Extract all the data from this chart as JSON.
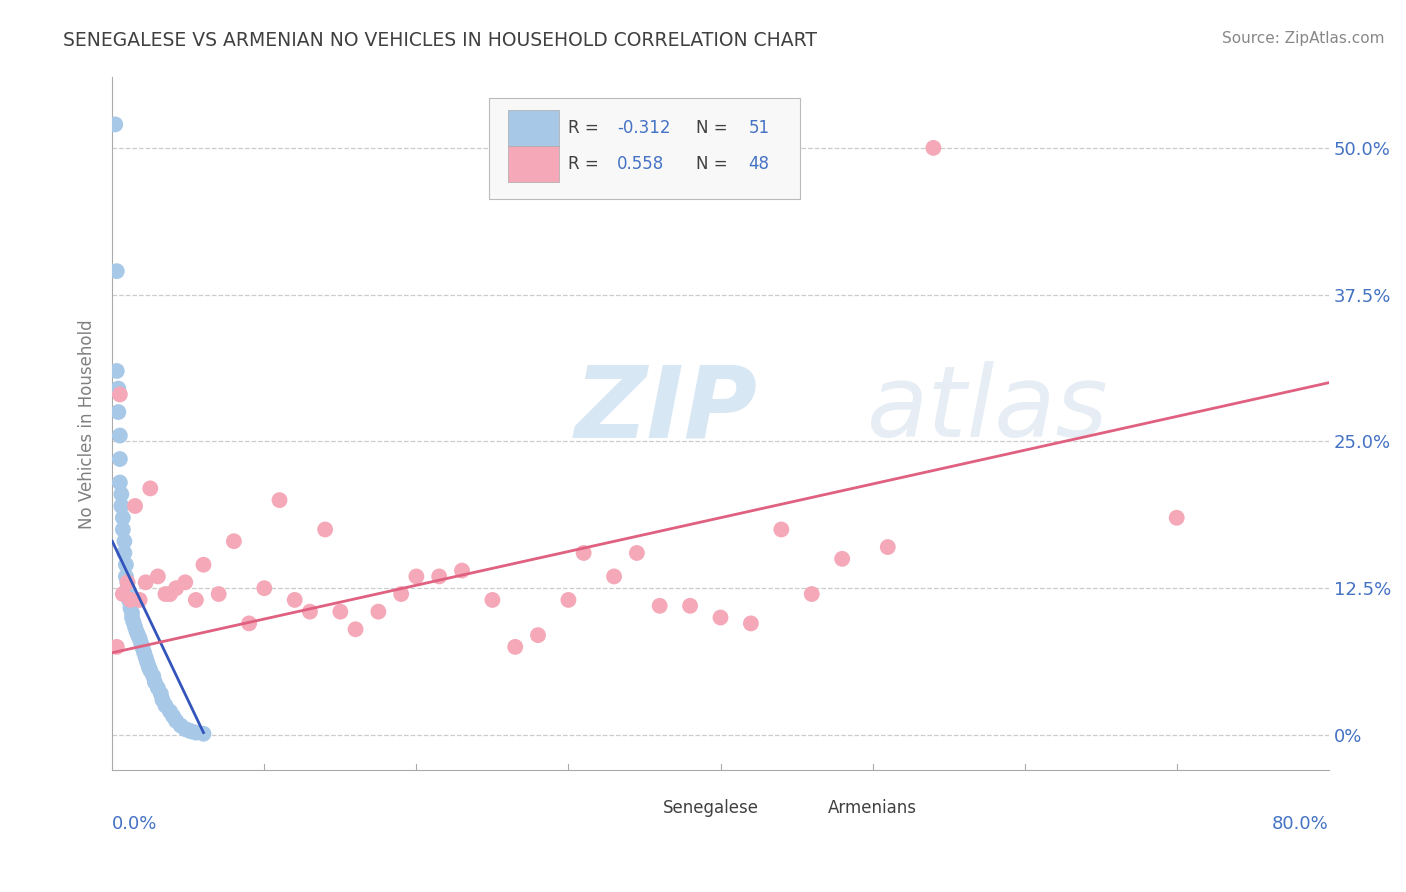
{
  "title": "SENEGALESE VS ARMENIAN NO VEHICLES IN HOUSEHOLD CORRELATION CHART",
  "source": "Source: ZipAtlas.com",
  "ylabel": "No Vehicles in Household",
  "ytick_vals": [
    0.0,
    0.125,
    0.25,
    0.375,
    0.5
  ],
  "ytick_labels": [
    "0%",
    "12.5%",
    "25.0%",
    "37.5%",
    "50.0%"
  ],
  "xmin": 0.0,
  "xmax": 0.8,
  "ymin": -0.03,
  "ymax": 0.56,
  "senegalese_R": -0.312,
  "senegalese_N": 51,
  "armenian_R": 0.558,
  "armenian_N": 48,
  "senegalese_color": "#a8c8e8",
  "armenian_color": "#f4a8b8",
  "senegalese_line_color": "#3355bb",
  "armenian_line_color": "#e06080",
  "background_color": "#ffffff",
  "title_color": "#404040",
  "watermark_color": "#cce0f0",
  "senegalese_x": [
    0.002,
    0.003,
    0.003,
    0.004,
    0.004,
    0.005,
    0.005,
    0.005,
    0.006,
    0.006,
    0.007,
    0.007,
    0.008,
    0.008,
    0.009,
    0.009,
    0.01,
    0.01,
    0.011,
    0.011,
    0.012,
    0.012,
    0.013,
    0.013,
    0.014,
    0.015,
    0.016,
    0.017,
    0.018,
    0.019,
    0.02,
    0.021,
    0.022,
    0.023,
    0.024,
    0.025,
    0.027,
    0.028,
    0.03,
    0.032,
    0.033,
    0.035,
    0.038,
    0.04,
    0.042,
    0.045,
    0.048,
    0.05,
    0.052,
    0.055,
    0.06
  ],
  "senegalese_y": [
    0.52,
    0.395,
    0.31,
    0.295,
    0.275,
    0.255,
    0.235,
    0.215,
    0.205,
    0.195,
    0.185,
    0.175,
    0.165,
    0.155,
    0.145,
    0.135,
    0.13,
    0.125,
    0.12,
    0.115,
    0.112,
    0.108,
    0.104,
    0.1,
    0.096,
    0.092,
    0.088,
    0.085,
    0.082,
    0.078,
    0.074,
    0.07,
    0.066,
    0.062,
    0.058,
    0.055,
    0.05,
    0.045,
    0.04,
    0.035,
    0.03,
    0.025,
    0.02,
    0.016,
    0.012,
    0.008,
    0.005,
    0.004,
    0.003,
    0.002,
    0.001
  ],
  "armenian_x": [
    0.003,
    0.005,
    0.007,
    0.01,
    0.012,
    0.015,
    0.018,
    0.022,
    0.025,
    0.03,
    0.035,
    0.038,
    0.042,
    0.048,
    0.055,
    0.06,
    0.07,
    0.08,
    0.09,
    0.1,
    0.11,
    0.12,
    0.13,
    0.14,
    0.15,
    0.16,
    0.175,
    0.19,
    0.2,
    0.215,
    0.23,
    0.25,
    0.265,
    0.28,
    0.3,
    0.31,
    0.33,
    0.345,
    0.36,
    0.38,
    0.4,
    0.42,
    0.44,
    0.46,
    0.48,
    0.51,
    0.54,
    0.7
  ],
  "armenian_y": [
    0.075,
    0.29,
    0.12,
    0.13,
    0.115,
    0.195,
    0.115,
    0.13,
    0.21,
    0.135,
    0.12,
    0.12,
    0.125,
    0.13,
    0.115,
    0.145,
    0.12,
    0.165,
    0.095,
    0.125,
    0.2,
    0.115,
    0.105,
    0.175,
    0.105,
    0.09,
    0.105,
    0.12,
    0.135,
    0.135,
    0.14,
    0.115,
    0.075,
    0.085,
    0.115,
    0.155,
    0.135,
    0.155,
    0.11,
    0.11,
    0.1,
    0.095,
    0.175,
    0.12,
    0.15,
    0.16,
    0.5,
    0.185
  ],
  "sen_line_x0": 0.0,
  "sen_line_x1": 0.06,
  "sen_line_y0": 0.165,
  "sen_line_y1": 0.002,
  "arm_line_x0": 0.0,
  "arm_line_x1": 0.8,
  "arm_line_y0": 0.07,
  "arm_line_y1": 0.3
}
